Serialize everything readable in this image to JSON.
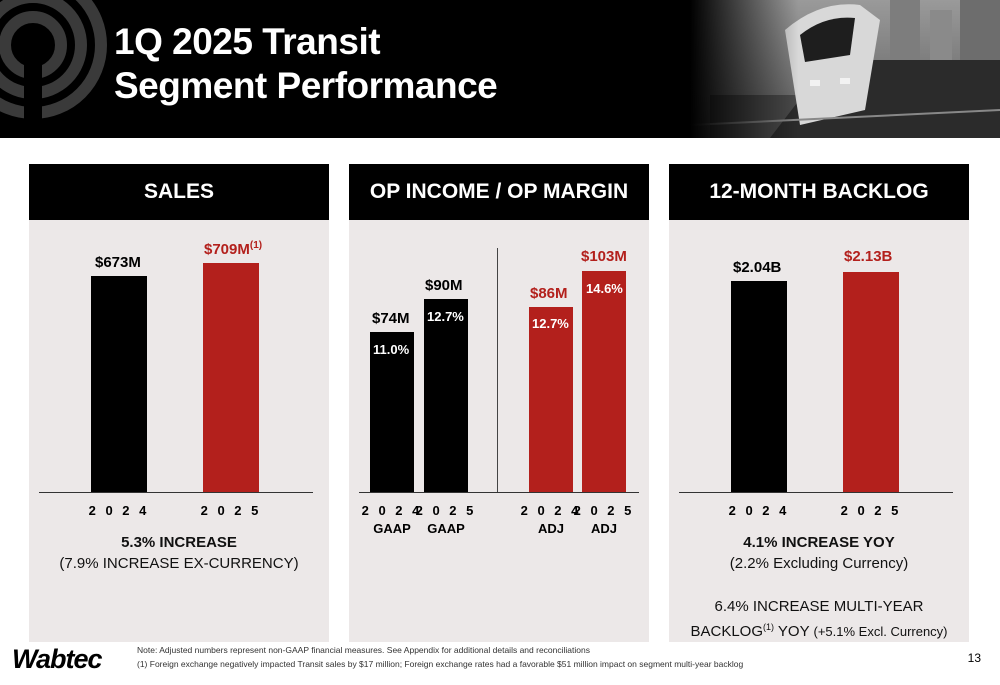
{
  "header": {
    "title_line1": "1Q 2025 Transit",
    "title_line2": "Segment Performance"
  },
  "sales": {
    "heading": "SALES",
    "bars": [
      {
        "year": "2 0 2 4",
        "label": "$673M",
        "value": 673,
        "color": "#000000"
      },
      {
        "year": "2 0 2 5",
        "label": "$709M",
        "footnote_mark": "(1)",
        "value": 709,
        "color": "#b3201c"
      }
    ],
    "caption_line1": "5.3% INCREASE",
    "caption_line2": "(7.9% INCREASE EX-CURRENCY)"
  },
  "op_income": {
    "heading": "OP INCOME / OP MARGIN",
    "bars": [
      {
        "year": "2 0 2 4",
        "basis": "GAAP",
        "label": "$74M",
        "margin": "11.0%",
        "value": 74,
        "color": "#000000"
      },
      {
        "year": "2 0 2 5",
        "basis": "GAAP",
        "label": "$90M",
        "margin": "12.7%",
        "value": 90,
        "color": "#000000"
      },
      {
        "year": "2 0 2 4",
        "basis": "ADJ",
        "label": "$86M",
        "margin": "12.7%",
        "value": 86,
        "color": "#b3201c"
      },
      {
        "year": "2 0 2 5",
        "basis": "ADJ",
        "label": "$103M",
        "margin": "14.6%",
        "value": 103,
        "color": "#b3201c"
      }
    ]
  },
  "backlog": {
    "heading": "12-MONTH BACKLOG",
    "bars": [
      {
        "year": "2 0 2 4",
        "label": "$2.04B",
        "value": 2.04,
        "color": "#000000"
      },
      {
        "year": "2 0 2 5",
        "label": "$2.13B",
        "value": 2.13,
        "color": "#b3201c"
      }
    ],
    "caption_line1": "4.1% INCREASE YOY",
    "caption_line2": "(2.2% Excluding Currency)",
    "caption_line3": "6.4% INCREASE MULTI-YEAR",
    "caption_line4a": "BACKLOG",
    "caption_line4_mark": "(1)",
    "caption_line4b": " YOY ",
    "caption_line4c": "(+5.1% Excl. Currency)"
  },
  "footer": {
    "logo": "Wabtec",
    "note": "Note: Adjusted numbers represent non-GAAP financial measures. See Appendix for additional details and reconciliations",
    "footnote_1": "(1)     Foreign exchange negatively impacted Transit sales by $17 million; Foreign exchange rates had a favorable $51 million impact on segment multi-year backlog",
    "page_number": "13"
  },
  "colors": {
    "accent_red": "#b3201c",
    "panel_bg": "#ece8e8",
    "header_bg": "#000000"
  },
  "icons": [
    "wabtec-ring-mark-icon",
    "train-photo"
  ]
}
